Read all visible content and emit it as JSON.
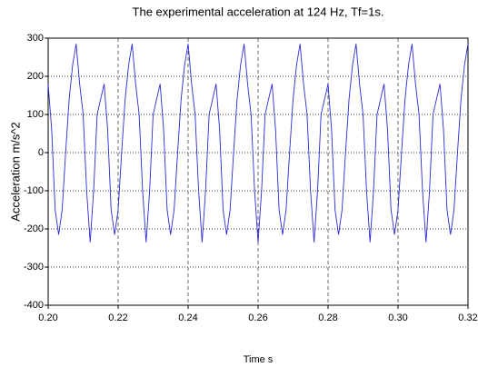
{
  "chart_data": {
    "type": "line",
    "title": "The experimental acceleration at 124 Hz, Tf=1s.",
    "xlabel": "Time s",
    "ylabel": "Acceleration m/s^2",
    "x": [
      0.2,
      0.201,
      0.202,
      0.203,
      0.204,
      0.205,
      0.206,
      0.207,
      0.208,
      0.209,
      0.21,
      0.211,
      0.212,
      0.213,
      0.214,
      0.215,
      0.216,
      0.217,
      0.218,
      0.219,
      0.22,
      0.221,
      0.222,
      0.223,
      0.224,
      0.225,
      0.226,
      0.227,
      0.228,
      0.229,
      0.23,
      0.231,
      0.232,
      0.233,
      0.234,
      0.235,
      0.236,
      0.237,
      0.238,
      0.239,
      0.24,
      0.241,
      0.242,
      0.243,
      0.244,
      0.245,
      0.246,
      0.247,
      0.248,
      0.249,
      0.25,
      0.251,
      0.252,
      0.253,
      0.254,
      0.255,
      0.256,
      0.257,
      0.258,
      0.259,
      0.26,
      0.261,
      0.262,
      0.263,
      0.264,
      0.265,
      0.266,
      0.267,
      0.268,
      0.269,
      0.27,
      0.271,
      0.272,
      0.273,
      0.274,
      0.275,
      0.276,
      0.277,
      0.278,
      0.279,
      0.28,
      0.281,
      0.282,
      0.283,
      0.284,
      0.285,
      0.286,
      0.287,
      0.288,
      0.289,
      0.29,
      0.291,
      0.292,
      0.293,
      0.294,
      0.295,
      0.296,
      0.297,
      0.298,
      0.299,
      0.3,
      0.301,
      0.302,
      0.303,
      0.304,
      0.305,
      0.306,
      0.307,
      0.308,
      0.309,
      0.31,
      0.311,
      0.312,
      0.313,
      0.314,
      0.315,
      0.316,
      0.317,
      0.318,
      0.319,
      0.32
    ],
    "series": [
      {
        "color": "#2b2bd6",
        "values": [
          180,
          60,
          -150,
          -215,
          -150,
          0,
          140,
          230,
          285,
          180,
          100,
          -100,
          -235,
          -100,
          100,
          140,
          180,
          60,
          -150,
          -215,
          -150,
          0,
          140,
          230,
          285,
          180,
          100,
          -100,
          -235,
          -100,
          100,
          140,
          180,
          60,
          -150,
          -215,
          -150,
          0,
          140,
          230,
          285,
          180,
          100,
          -100,
          -235,
          -100,
          100,
          140,
          180,
          60,
          -150,
          -215,
          -150,
          0,
          140,
          230,
          285,
          180,
          100,
          -100,
          -235,
          -100,
          100,
          140,
          180,
          60,
          -150,
          -215,
          -150,
          0,
          140,
          230,
          285,
          180,
          100,
          -100,
          -235,
          -100,
          100,
          140,
          180,
          60,
          -150,
          -215,
          -150,
          0,
          140,
          230,
          285,
          180,
          100,
          -100,
          -235,
          -100,
          100,
          140,
          180,
          60,
          -150,
          -215,
          -150,
          0,
          140,
          230,
          285,
          180,
          100,
          -100,
          -235,
          -100,
          100,
          140,
          180,
          60,
          -150,
          -215,
          -150,
          0,
          140,
          230,
          285
        ]
      }
    ],
    "xlim": [
      0.2,
      0.32
    ],
    "xticks": [
      {
        "value": 0.2,
        "label": "0.20"
      },
      0.22,
      0.24,
      0.26,
      0.28,
      {
        "value": 0.3,
        "label": "0.30"
      },
      0.32
    ],
    "ylim": [
      -400,
      300
    ],
    "yticks": [
      -400,
      -300,
      -200,
      -100,
      0,
      100,
      200,
      300
    ],
    "grid": true
  }
}
